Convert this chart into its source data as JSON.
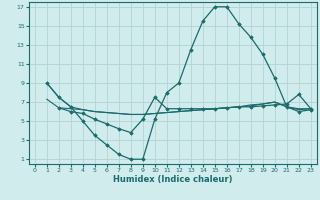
{
  "xlabel": "Humidex (Indice chaleur)",
  "bg_color": "#d0ecec",
  "grid_color": "#b0d4d4",
  "line_color": "#1a6b6b",
  "xlim": [
    -0.5,
    23.5
  ],
  "ylim": [
    0.5,
    17.5
  ],
  "xticks": [
    0,
    1,
    2,
    3,
    4,
    5,
    6,
    7,
    8,
    9,
    10,
    11,
    12,
    13,
    14,
    15,
    16,
    17,
    18,
    19,
    20,
    21,
    22,
    23
  ],
  "yticks": [
    1,
    3,
    5,
    7,
    9,
    11,
    13,
    15,
    17
  ],
  "line1_x": [
    1,
    2,
    3,
    4,
    5,
    6,
    7,
    8,
    9,
    10,
    11,
    12,
    13,
    14,
    15,
    16,
    17,
    18,
    19,
    20,
    21,
    22,
    23
  ],
  "line1_y": [
    9,
    7.5,
    6.5,
    5.0,
    3.5,
    2.5,
    1.5,
    1.0,
    1.0,
    5.2,
    8.0,
    9.0,
    12.5,
    15.5,
    17.0,
    17.0,
    15.2,
    13.8,
    12.0,
    9.5,
    6.5,
    6.0,
    6.2
  ],
  "line2_x": [
    1,
    2,
    3,
    4,
    5,
    6,
    7,
    8,
    9,
    10,
    11,
    12,
    13,
    14,
    15,
    16,
    17,
    18,
    19,
    20,
    21,
    22,
    23
  ],
  "line2_y": [
    9.0,
    7.5,
    6.5,
    6.2,
    6.0,
    5.9,
    5.8,
    5.7,
    5.7,
    5.8,
    5.9,
    6.0,
    6.1,
    6.2,
    6.3,
    6.4,
    6.5,
    6.7,
    6.8,
    7.0,
    6.5,
    6.3,
    6.3
  ],
  "line3_x": [
    1,
    2,
    3,
    4,
    5,
    6,
    7,
    8,
    9,
    10,
    11,
    12,
    13,
    14,
    15,
    16,
    17,
    18,
    19,
    20,
    21,
    22,
    23
  ],
  "line3_y": [
    7.3,
    6.4,
    6.3,
    6.2,
    6.0,
    5.9,
    5.8,
    5.7,
    5.7,
    5.8,
    5.9,
    6.0,
    6.1,
    6.2,
    6.3,
    6.4,
    6.5,
    6.6,
    6.8,
    7.0,
    6.5,
    6.2,
    6.3
  ],
  "line4_x": [
    2,
    3,
    4,
    5,
    6,
    7,
    8,
    9,
    10,
    11,
    12,
    13,
    14,
    15,
    16,
    17,
    18,
    19,
    20,
    21,
    22,
    23
  ],
  "line4_y": [
    6.4,
    6.0,
    5.8,
    5.2,
    4.7,
    4.2,
    3.8,
    5.2,
    7.5,
    6.3,
    6.3,
    6.3,
    6.3,
    6.3,
    6.4,
    6.5,
    6.5,
    6.6,
    6.7,
    6.8,
    7.8,
    6.3
  ]
}
